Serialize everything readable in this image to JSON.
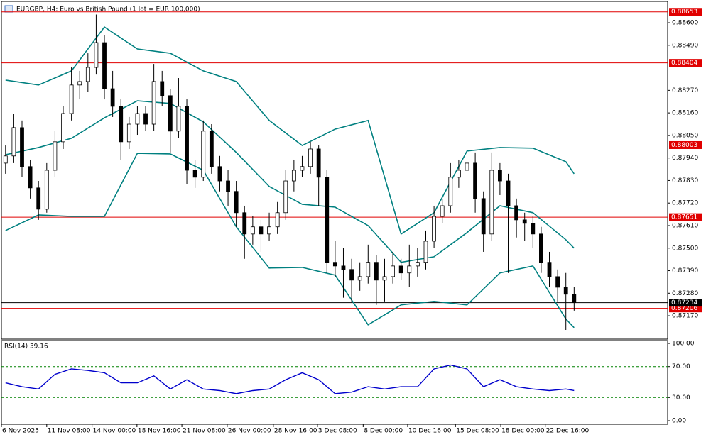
{
  "chart_data": [
    {
      "type": "candlestick",
      "title": "EURGBP, H4:  Euro vs British Pound (1 lot = EUR 100,000)",
      "xlim": [
        -0.5,
        80.35
      ],
      "ylim": [
        0.87056,
        0.88704
      ],
      "yticks": [
        {
          "value": 0.886,
          "label": "0.88600"
        },
        {
          "value": 0.8849,
          "label": "0.88490"
        },
        {
          "value": 0.8827,
          "label": "0.88270"
        },
        {
          "value": 0.8816,
          "label": "0.88160"
        },
        {
          "value": 0.8805,
          "label": "0.88050"
        },
        {
          "value": 0.8794,
          "label": "0.87940"
        },
        {
          "value": 0.8783,
          "label": "0.87830"
        },
        {
          "value": 0.8772,
          "label": "0.87720"
        },
        {
          "value": 0.8761,
          "label": "0.87610"
        },
        {
          "value": 0.875,
          "label": "0.87500"
        },
        {
          "value": 0.8739,
          "label": "0.87390"
        },
        {
          "value": 0.8728,
          "label": "0.87280"
        },
        {
          "value": 0.8717,
          "label": "0.87170"
        }
      ],
      "open": [
        0.87915,
        0.8795,
        0.88088,
        0.87898,
        0.87794,
        0.8769,
        0.8788,
        0.88019,
        0.88157,
        0.88296,
        0.88313,
        0.88382,
        0.88503,
        0.88278,
        0.88192,
        0.88019,
        0.88105,
        0.88157,
        0.88105,
        0.88313,
        0.88244,
        0.88071,
        0.88192,
        0.8788,
        0.87846,
        0.88071,
        0.87898,
        0.87828,
        0.87777,
        0.87673,
        0.87569,
        0.87604,
        0.87569,
        0.87604,
        0.87673,
        0.87828,
        0.8788,
        0.87898,
        0.87984,
        0.87846,
        0.87431,
        0.87413,
        0.87396,
        0.87344,
        0.87361,
        0.87431,
        0.87344,
        0.87361,
        0.87413,
        0.87379,
        0.87413,
        0.87431,
        0.87534,
        0.87655,
        0.87707,
        0.87846,
        0.8788,
        0.87915,
        0.87742,
        0.87569,
        0.8788,
        0.87828,
        0.87707,
        0.87638,
        0.87621,
        0.87569,
        0.87431,
        0.87361,
        0.87309,
        0.87275
      ],
      "high": [
        0.88001,
        0.88157,
        0.88123,
        0.87932,
        0.87828,
        0.87915,
        0.88071,
        0.88192,
        0.88382,
        0.88365,
        0.88451,
        0.8864,
        0.88538,
        0.88365,
        0.88226,
        0.8814,
        0.88192,
        0.88192,
        0.88399,
        0.88365,
        0.88278,
        0.8833,
        0.88226,
        0.87932,
        0.88123,
        0.88105,
        0.8795,
        0.8788,
        0.87828,
        0.87707,
        0.87655,
        0.87638,
        0.87673,
        0.87725,
        0.8788,
        0.87932,
        0.8795,
        0.88019,
        0.88001,
        0.8788,
        0.87534,
        0.875,
        0.87448,
        0.87431,
        0.87517,
        0.87465,
        0.87448,
        0.87482,
        0.87448,
        0.87517,
        0.875,
        0.87586,
        0.87707,
        0.87742,
        0.87915,
        0.87932,
        0.87984,
        0.87967,
        0.87777,
        0.87967,
        0.87915,
        0.87863,
        0.87742,
        0.87673,
        0.87655,
        0.87604,
        0.87482,
        0.87396,
        0.87379,
        0.87309
      ],
      "low": [
        0.87863,
        0.87915,
        0.87846,
        0.87742,
        0.87638,
        0.87673,
        0.87846,
        0.87984,
        0.88123,
        0.88226,
        0.88261,
        0.88347,
        0.88226,
        0.8814,
        0.87932,
        0.87984,
        0.88053,
        0.88071,
        0.88071,
        0.88192,
        0.87967,
        0.88036,
        0.87811,
        0.87794,
        0.87828,
        0.87863,
        0.87777,
        0.87707,
        0.87604,
        0.87448,
        0.87517,
        0.87482,
        0.87534,
        0.87569,
        0.87638,
        0.87777,
        0.87846,
        0.87863,
        0.87707,
        0.87379,
        0.87361,
        0.87258,
        0.8724,
        0.87292,
        0.87327,
        0.87223,
        0.8724,
        0.87327,
        0.87344,
        0.87309,
        0.87361,
        0.87396,
        0.875,
        0.87621,
        0.87673,
        0.87794,
        0.87846,
        0.87673,
        0.87482,
        0.87534,
        0.87759,
        0.87379,
        0.87552,
        0.87534,
        0.875,
        0.87379,
        0.87309,
        0.8724,
        0.87101,
        0.87195
      ],
      "close": [
        0.8795,
        0.88088,
        0.87898,
        0.87794,
        0.8769,
        0.8788,
        0.88019,
        0.88157,
        0.88296,
        0.88313,
        0.88382,
        0.88503,
        0.88278,
        0.88192,
        0.88019,
        0.88105,
        0.88157,
        0.88105,
        0.88313,
        0.88244,
        0.88071,
        0.88192,
        0.8788,
        0.87846,
        0.88071,
        0.87898,
        0.87828,
        0.87777,
        0.87673,
        0.87569,
        0.87604,
        0.87569,
        0.87604,
        0.87673,
        0.87828,
        0.8788,
        0.87898,
        0.87984,
        0.87846,
        0.87431,
        0.87413,
        0.87396,
        0.87344,
        0.87361,
        0.87431,
        0.87344,
        0.87361,
        0.87413,
        0.87379,
        0.87413,
        0.87431,
        0.87534,
        0.87655,
        0.87707,
        0.87846,
        0.8788,
        0.87915,
        0.87742,
        0.87569,
        0.8788,
        0.87828,
        0.87707,
        0.87638,
        0.87621,
        0.87569,
        0.87431,
        0.87361,
        0.87309,
        0.87275,
        0.87234
      ],
      "series": [
        {
          "color": "#008080",
          "x": [
            0,
            4,
            8,
            12,
            16,
            20,
            24,
            28,
            32,
            36,
            40,
            44,
            48,
            52,
            56,
            60,
            64,
            68,
            69
          ],
          "values": [
            0.8832,
            0.88296,
            0.88365,
            0.88579,
            0.88472,
            0.88451,
            0.88365,
            0.88313,
            0.88123,
            0.88001,
            0.88081,
            0.88123,
            0.87569,
            0.87673,
            0.87974,
            0.87991,
            0.87988,
            0.87922,
            0.87863
          ]
        },
        {
          "color": "#008080",
          "x": [
            0,
            4,
            8,
            12,
            16,
            20,
            24,
            28,
            32,
            36,
            40,
            44,
            48,
            52,
            56,
            60,
            64,
            68,
            69
          ],
          "values": [
            0.87956,
            0.87991,
            0.88036,
            0.88136,
            0.88219,
            0.88206,
            0.88116,
            0.87967,
            0.87801,
            0.87714,
            0.877,
            0.8761,
            0.87431,
            0.87458,
            0.87576,
            0.87707,
            0.87673,
            0.87541,
            0.875
          ]
        },
        {
          "color": "#008080",
          "x": [
            0,
            4,
            8,
            12,
            16,
            20,
            24,
            28,
            32,
            36,
            40,
            44,
            48,
            52,
            56,
            60,
            64,
            68,
            69
          ],
          "values": [
            0.87586,
            0.87662,
            0.87655,
            0.87655,
            0.87963,
            0.8796,
            0.8788,
            0.87604,
            0.87403,
            0.87406,
            0.87368,
            0.87126,
            0.87223,
            0.8724,
            0.87223,
            0.87379,
            0.87413,
            0.87154,
            0.87112
          ]
        }
      ],
      "levels": [
        0.88653,
        0.88404,
        0.88003,
        0.87651,
        0.87206
      ],
      "level_color": "#e00000",
      "current_price": 0.87234
    },
    {
      "type": "line",
      "title": "RSI(14) 39.16",
      "xlim": [
        -0.5,
        80.35
      ],
      "ylim": [
        -4.6,
        103.7
      ],
      "yticks": [
        {
          "value": 100,
          "label": "100.00"
        },
        {
          "value": 70,
          "label": "70.00"
        },
        {
          "value": 30,
          "label": "30.00"
        },
        {
          "value": 0,
          "label": "0.00"
        }
      ],
      "levels": [
        70,
        30
      ],
      "xticks": [
        {
          "value": -0.5,
          "label": "6 Nov 2025"
        },
        {
          "value": 5,
          "label": "11 Nov 08:00"
        },
        {
          "value": 10.5,
          "label": "14 Nov 00:00"
        },
        {
          "value": 15.95,
          "label": "18 Nov 16:00"
        },
        {
          "value": 21.4,
          "label": "21 Nov 08:00"
        },
        {
          "value": 26.9,
          "label": "26 Nov 00:00"
        },
        {
          "value": 32.5,
          "label": "28 Nov 16:00"
        },
        {
          "value": 37.85,
          "label": "3 Dec 08:00"
        },
        {
          "value": 43.4,
          "label": "8 Dec 00:00"
        },
        {
          "value": 48.8,
          "label": "10 Dec 16:00"
        },
        {
          "value": 54.6,
          "label": "15 Dec 08:00"
        },
        {
          "value": 60.1,
          "label": "18 Dec 00:00"
        },
        {
          "value": 65.5,
          "label": "22 Dec 16:00"
        }
      ],
      "series": [
        {
          "color": "#0000cc",
          "x": [
            0,
            2,
            4,
            6,
            8,
            10,
            12,
            14,
            16,
            18,
            20,
            22,
            24,
            26,
            28,
            30,
            32,
            34,
            36,
            38,
            40,
            42,
            44,
            46,
            48,
            50,
            52,
            54,
            56,
            58,
            60,
            62,
            64,
            66,
            68,
            69
          ],
          "values": [
            49,
            44,
            41,
            60,
            67,
            65,
            62,
            49,
            49,
            58,
            41,
            53,
            41,
            39,
            35,
            39,
            41,
            53,
            62,
            53,
            35,
            37,
            44,
            41,
            44,
            44,
            67,
            72,
            67,
            44,
            53,
            44,
            41,
            39,
            41,
            39
          ]
        }
      ]
    }
  ]
}
